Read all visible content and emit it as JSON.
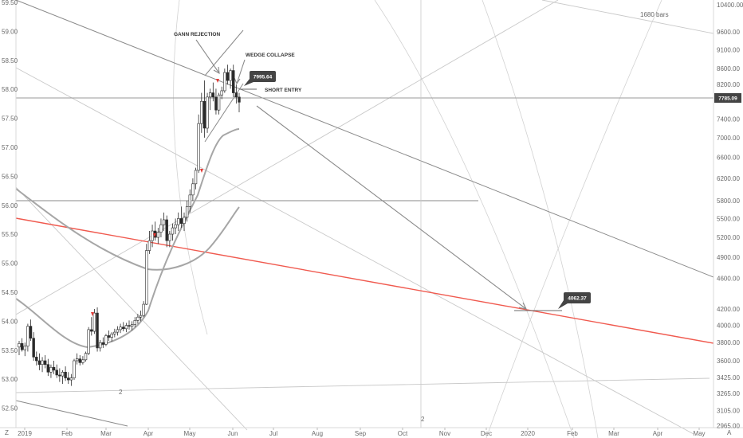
{
  "chart_data": {
    "type": "candlestick",
    "colors": {
      "background": "#ffffff",
      "trendline": "#8a8a8a",
      "light_line": "#c9c9c9",
      "red_line": "#f05a4f",
      "moving_average": "#a6a6a6",
      "candle": "#2a2a2a",
      "label_box": "#444444",
      "price_marker": "#444444",
      "signal_arrow": "#e53935"
    },
    "left_axis": {
      "ticks": [
        "59.50",
        "59.00",
        "58.50",
        "58.00",
        "57.50",
        "57.00",
        "56.50",
        "56.00",
        "55.50",
        "55.00",
        "54.50",
        "54.00",
        "53.50",
        "53.00",
        "52.50"
      ],
      "range": [
        52.3,
        59.6
      ]
    },
    "right_axis": {
      "scale": "log",
      "ticks": [
        "10400.00",
        "9600.00",
        "9100.00",
        "8600.00",
        "8200.00",
        "7400.00",
        "7000.00",
        "6600.00",
        "6200.00",
        "5800.00",
        "5500.00",
        "5200.00",
        "4900.00",
        "4600.00",
        "4200.00",
        "4000.00",
        "3800.00",
        "3600.00",
        "3425.00",
        "3265.00",
        "3105.00",
        "2965.00"
      ],
      "current_price": "7785.09"
    },
    "x_axis": {
      "ticks": [
        "2019",
        "Feb",
        "Mar",
        "Apr",
        "May",
        "Jun",
        "Jul",
        "Aug",
        "Sep",
        "Oct",
        "Nov",
        "Dec",
        "2020",
        "Feb",
        "Mar",
        "Apr",
        "May"
      ],
      "corner_left": "Z",
      "corner_right": "A"
    },
    "price_labels": {
      "entry": "7995.64",
      "target": "4062.37"
    },
    "annotations": {
      "gann": "GANN REJECTION",
      "wedge": "WEDGE COLLAPSE",
      "short_entry": "SHORT ENTRY",
      "bars_count": "1680 bars",
      "marker_a": "2",
      "marker_b": "2"
    },
    "series": [
      {
        "values": [
          [
            3750,
            3820,
            3660,
            3790
          ],
          [
            3790,
            3850,
            3700,
            3720
          ],
          [
            3720,
            3800,
            3650,
            3760
          ],
          [
            3760,
            4020,
            3700,
            3990
          ],
          [
            3990,
            4070,
            3820,
            3850
          ],
          [
            3850,
            3920,
            3600,
            3640
          ],
          [
            3640,
            3700,
            3550,
            3600
          ],
          [
            3600,
            3680,
            3500,
            3560
          ],
          [
            3560,
            3640,
            3480,
            3600
          ],
          [
            3600,
            3660,
            3520,
            3560
          ],
          [
            3560,
            3620,
            3440,
            3480
          ],
          [
            3480,
            3560,
            3420,
            3530
          ],
          [
            3530,
            3600,
            3460,
            3500
          ],
          [
            3500,
            3560,
            3420,
            3450
          ],
          [
            3450,
            3520,
            3380,
            3440
          ],
          [
            3440,
            3500,
            3360,
            3480
          ],
          [
            3480,
            3540,
            3390,
            3420
          ],
          [
            3420,
            3480,
            3360,
            3400
          ],
          [
            3400,
            3460,
            3340,
            3420
          ],
          [
            3420,
            3620,
            3400,
            3600
          ],
          [
            3600,
            3680,
            3560,
            3620
          ],
          [
            3620,
            3660,
            3550,
            3580
          ],
          [
            3580,
            3650,
            3560,
            3610
          ],
          [
            3610,
            3700,
            3590,
            3680
          ],
          [
            3680,
            3980,
            3660,
            3950
          ],
          [
            3950,
            4100,
            3880,
            3930
          ],
          [
            3930,
            4200,
            3900,
            4150
          ],
          [
            4150,
            4220,
            3700,
            3740
          ],
          [
            3740,
            3830,
            3700,
            3800
          ],
          [
            3800,
            3860,
            3740,
            3780
          ],
          [
            3780,
            3900,
            3760,
            3880
          ],
          [
            3880,
            3940,
            3820,
            3860
          ],
          [
            3860,
            3920,
            3810,
            3900
          ],
          [
            3900,
            3960,
            3860,
            3920
          ],
          [
            3920,
            3990,
            3880,
            3950
          ],
          [
            3950,
            4020,
            3910,
            3980
          ],
          [
            3980,
            4040,
            3930,
            3960
          ],
          [
            3960,
            4030,
            3920,
            4000
          ],
          [
            4000,
            4060,
            3950,
            3990
          ],
          [
            3990,
            4050,
            3940,
            4010
          ],
          [
            4010,
            4100,
            3980,
            4060
          ],
          [
            4060,
            4140,
            4020,
            4100
          ],
          [
            4100,
            4180,
            4050,
            4120
          ],
          [
            4120,
            4300,
            4100,
            4260
          ],
          [
            4260,
            5100,
            4250,
            5000
          ],
          [
            5000,
            5300,
            4950,
            5150
          ],
          [
            5150,
            5400,
            5050,
            5300
          ],
          [
            5300,
            5450,
            5150,
            5200
          ],
          [
            5200,
            5350,
            5100,
            5280
          ],
          [
            5280,
            5500,
            5200,
            5400
          ],
          [
            5400,
            5600,
            5300,
            5480
          ],
          [
            5480,
            5550,
            5050,
            5150
          ],
          [
            5150,
            5300,
            5050,
            5250
          ],
          [
            5250,
            5420,
            5150,
            5350
          ],
          [
            5350,
            5500,
            5250,
            5400
          ],
          [
            5400,
            5600,
            5300,
            5500
          ],
          [
            5500,
            5700,
            5350,
            5420
          ],
          [
            5420,
            5600,
            5300,
            5520
          ],
          [
            5520,
            5800,
            5450,
            5700
          ],
          [
            5700,
            6000,
            5600,
            5900
          ],
          [
            5900,
            6200,
            5800,
            6100
          ],
          [
            6100,
            6400,
            6000,
            6350
          ],
          [
            6350,
            7500,
            6300,
            7300
          ],
          [
            7300,
            8000,
            7100,
            7800
          ],
          [
            7800,
            8300,
            7000,
            7200
          ],
          [
            7200,
            8000,
            7100,
            7900
          ],
          [
            7900,
            8100,
            7600,
            8000
          ],
          [
            8000,
            8250,
            7800,
            7900
          ],
          [
            7900,
            8100,
            7500,
            7600
          ],
          [
            7600,
            8000,
            7500,
            7950
          ],
          [
            7950,
            8150,
            7850,
            8050
          ],
          [
            8050,
            8600,
            8000,
            8500
          ],
          [
            8500,
            8700,
            8200,
            8300
          ],
          [
            8300,
            8600,
            8100,
            8550
          ],
          [
            8550,
            8700,
            7900,
            8000
          ],
          [
            8000,
            8200,
            7750,
            7900
          ],
          [
            7900,
            8000,
            7550,
            7780
          ]
        ]
      }
    ]
  }
}
